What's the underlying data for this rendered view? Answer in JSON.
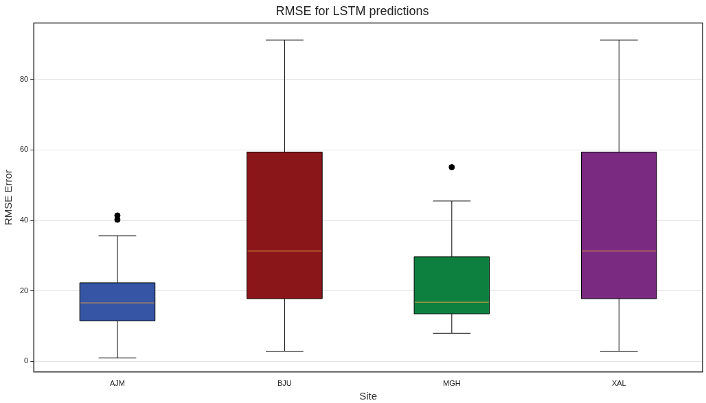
{
  "chart_data": {
    "type": "box",
    "title": "RMSE for LSTM predictions",
    "xlabel": "Site",
    "ylabel": "RMSE Error",
    "categories": [
      "AJM",
      "BJU",
      "MGH",
      "XAL"
    ],
    "colors": [
      "#3655a4",
      "#8b161a",
      "#0d8040",
      "#7a2a80"
    ],
    "boxes": [
      {
        "low": 1.0,
        "q1": 11.5,
        "median": 16.6,
        "q3": 22.3,
        "high": 35.6,
        "outliers": [
          40.2,
          41.4
        ]
      },
      {
        "low": 2.9,
        "q1": 17.8,
        "median": 31.3,
        "q3": 59.4,
        "high": 91.2
      },
      {
        "low": 8.0,
        "q1": 13.5,
        "median": 16.8,
        "q3": 29.7,
        "high": 45.5,
        "outliers": [
          55.1
        ]
      },
      {
        "low": 2.9,
        "q1": 17.8,
        "median": 31.3,
        "q3": 59.4,
        "high": 91.2
      }
    ],
    "ylim": [
      -3,
      96
    ],
    "yticks": [
      0,
      20,
      40,
      60,
      80
    ],
    "grid": "y"
  }
}
